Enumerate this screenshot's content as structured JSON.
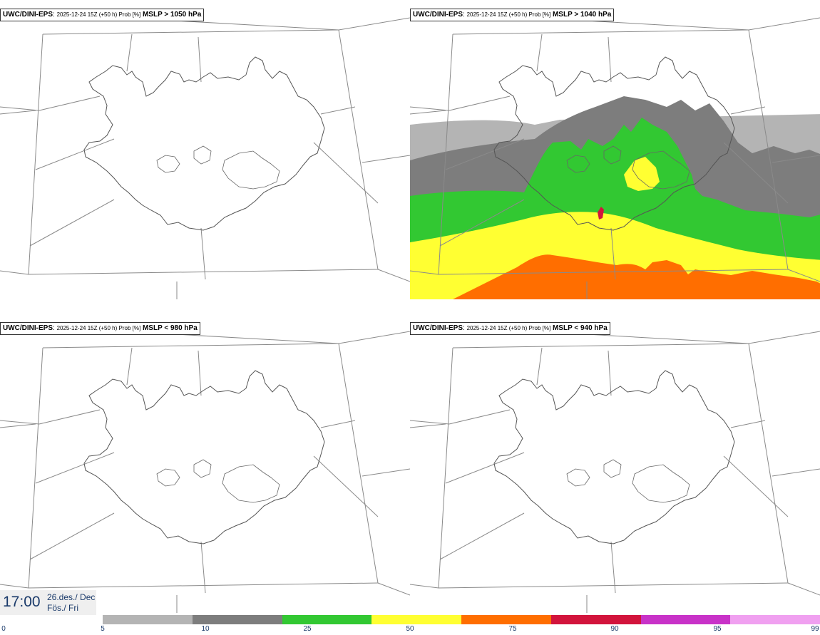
{
  "panels": [
    {
      "model": "UWC/DINI-EPS",
      "meta": "2025-12-24 15Z (+50 h) Prob [%]",
      "threshold": "MSLP > 1050 hPa"
    },
    {
      "model": "UWC/DINI-EPS",
      "meta": "2025-12-24 15Z (+50 h) Prob [%]",
      "threshold": "MSLP > 1040 hPa"
    },
    {
      "model": "UWC/DINI-EPS",
      "meta": "2025-12-24 15Z (+50 h) Prob [%]",
      "threshold": "MSLP < 980 hPa"
    },
    {
      "model": "UWC/DINI-EPS",
      "meta": "2025-12-24 15Z (+50 h) Prob [%]",
      "threshold": "MSLP < 940 hPa"
    }
  ],
  "valid_time": {
    "time": "17:00",
    "date_line1": "26.des./ Dec",
    "date_line2": "Fös./ Fri"
  },
  "colorbar": {
    "ticks": [
      "0",
      "5",
      "10",
      "25",
      "50",
      "75",
      "90",
      "95",
      "99"
    ],
    "colors": [
      "#b4b4b4",
      "#7d7d7d",
      "#32c832",
      "#ffff32",
      "#ff6e00",
      "#d2143c",
      "#c832c8",
      "#f0a0f0"
    ]
  },
  "probability_field": {
    "panel": 1,
    "bands": [
      {
        "level": "5-10",
        "color": "#b4b4b4"
      },
      {
        "level": "10-25",
        "color": "#7d7d7d"
      },
      {
        "level": "25-50",
        "color": "#32c832"
      },
      {
        "level": "50-75",
        "color": "#ffff32"
      },
      {
        "level": "75-90",
        "color": "#ff6e00"
      },
      {
        "level": "90-95",
        "color": "#d2143c"
      }
    ]
  }
}
